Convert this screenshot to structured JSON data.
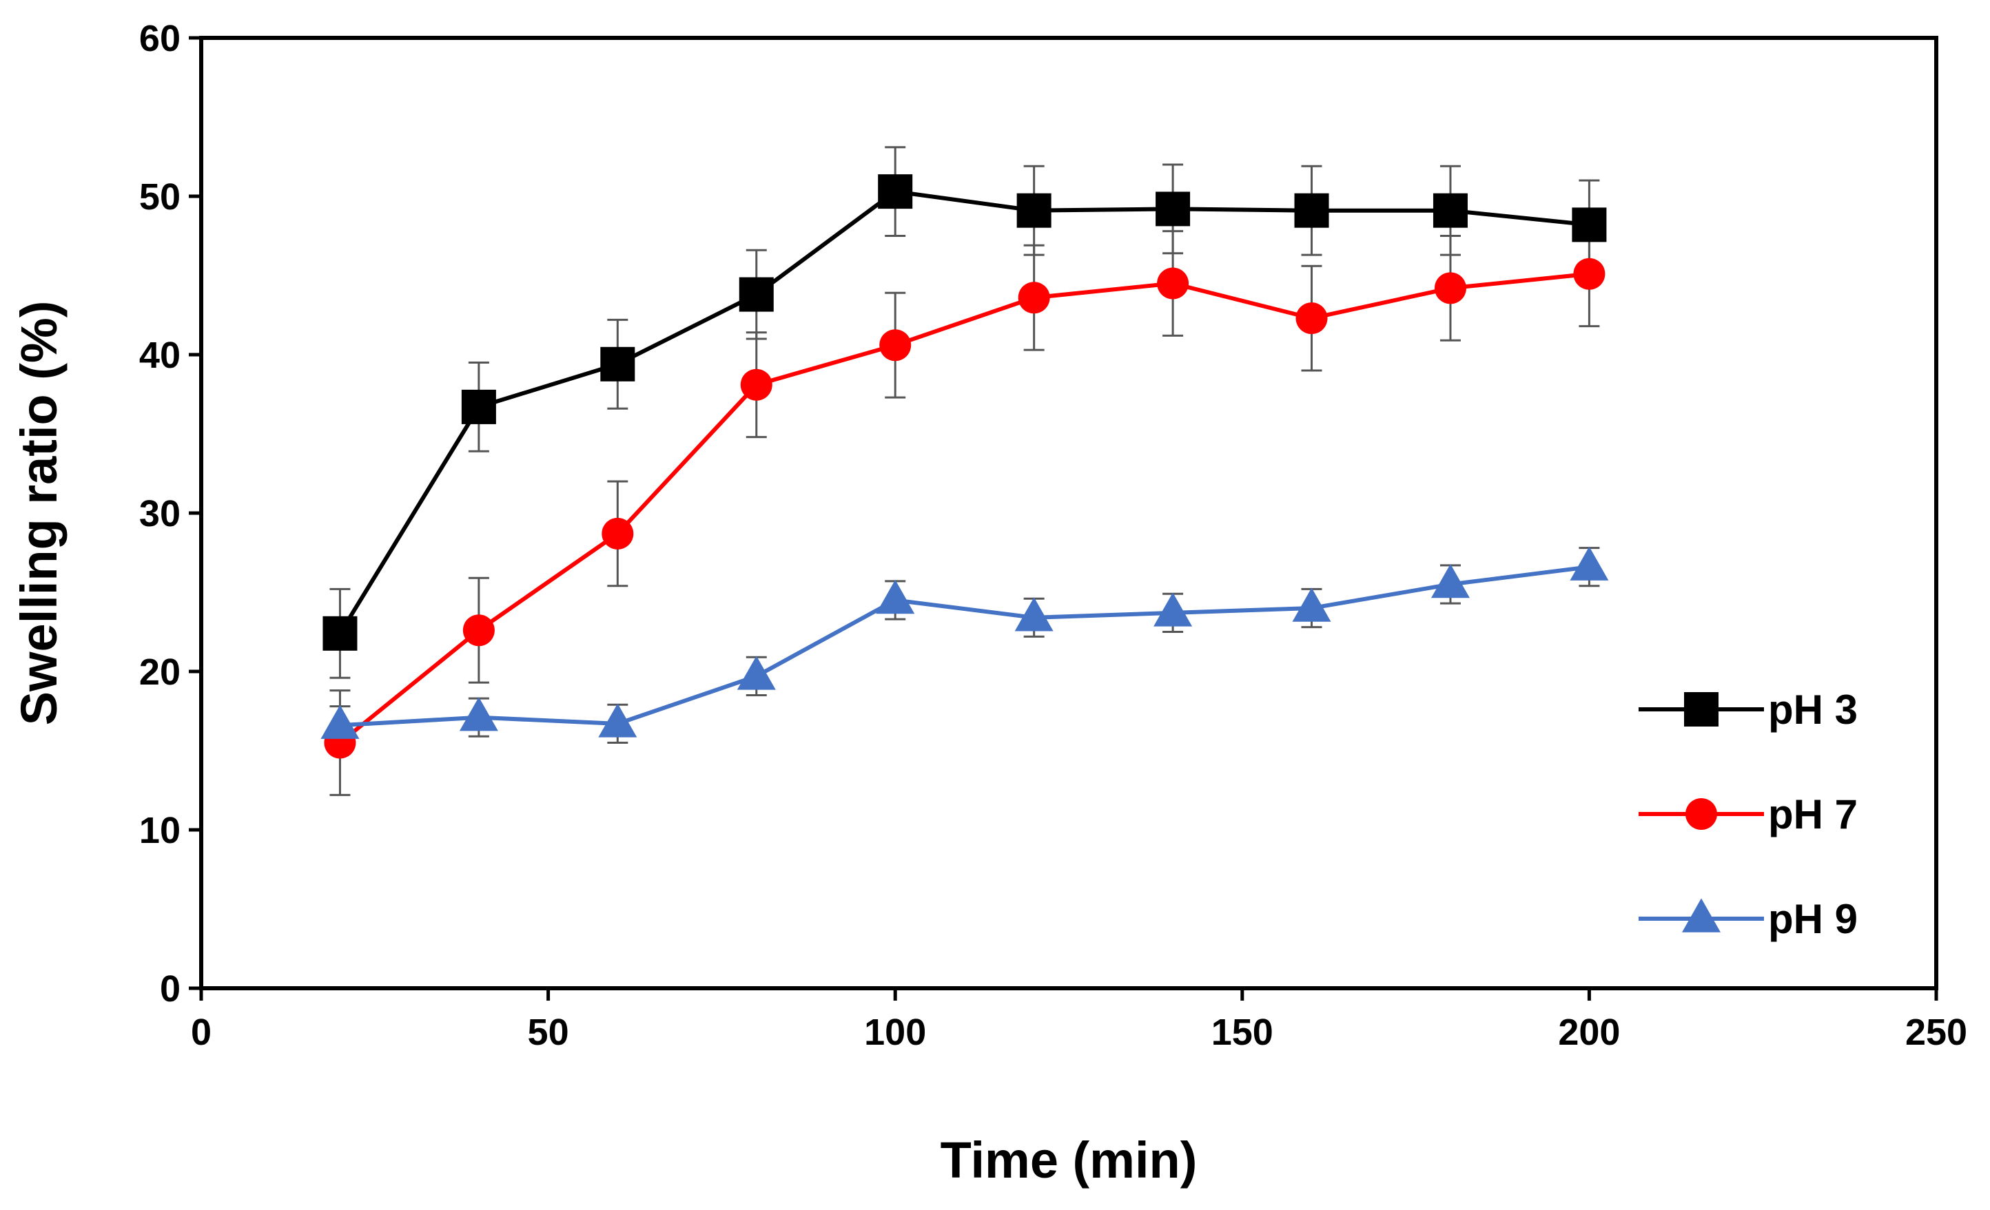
{
  "chart_data": {
    "type": "line",
    "title": "",
    "xlabel": "Time (min)",
    "ylabel": "Swelling ratio (%)",
    "xlim": [
      0,
      250
    ],
    "ylim": [
      0,
      60
    ],
    "x_ticks": [
      0,
      50,
      100,
      150,
      200,
      250
    ],
    "y_ticks": [
      0,
      10,
      20,
      30,
      40,
      50,
      60
    ],
    "x_tick_labels": [
      "0",
      "50",
      "100",
      "150",
      "200",
      "250"
    ],
    "y_tick_labels": [
      "0",
      "10",
      "20",
      "30",
      "40",
      "50",
      "60"
    ],
    "grid": false,
    "legend_position": "right",
    "x": [
      20,
      40,
      60,
      80,
      100,
      120,
      140,
      160,
      180,
      200
    ],
    "series": [
      {
        "name": "pH 3",
        "color": "#000000",
        "marker": "square",
        "values": [
          22.4,
          36.7,
          39.4,
          43.8,
          50.3,
          49.1,
          49.2,
          49.1,
          49.1,
          48.2
        ],
        "errors": [
          2.8,
          2.8,
          2.8,
          2.8,
          2.8,
          2.8,
          2.8,
          2.8,
          2.8,
          2.8
        ]
      },
      {
        "name": "pH 7",
        "color": "#ff0000",
        "marker": "circle",
        "values": [
          15.5,
          22.6,
          28.7,
          38.1,
          40.6,
          43.6,
          44.5,
          42.3,
          44.2,
          45.1
        ],
        "errors": [
          3.3,
          3.3,
          3.3,
          3.3,
          3.3,
          3.3,
          3.3,
          3.3,
          3.3,
          3.3
        ]
      },
      {
        "name": "pH 9",
        "color": "#4472c4",
        "marker": "triangle",
        "values": [
          16.6,
          17.1,
          16.7,
          19.7,
          24.5,
          23.4,
          23.7,
          24.0,
          25.5,
          26.6
        ],
        "errors": [
          1.2,
          1.2,
          1.2,
          1.2,
          1.2,
          1.2,
          1.2,
          1.2,
          1.2,
          1.2
        ]
      }
    ]
  }
}
